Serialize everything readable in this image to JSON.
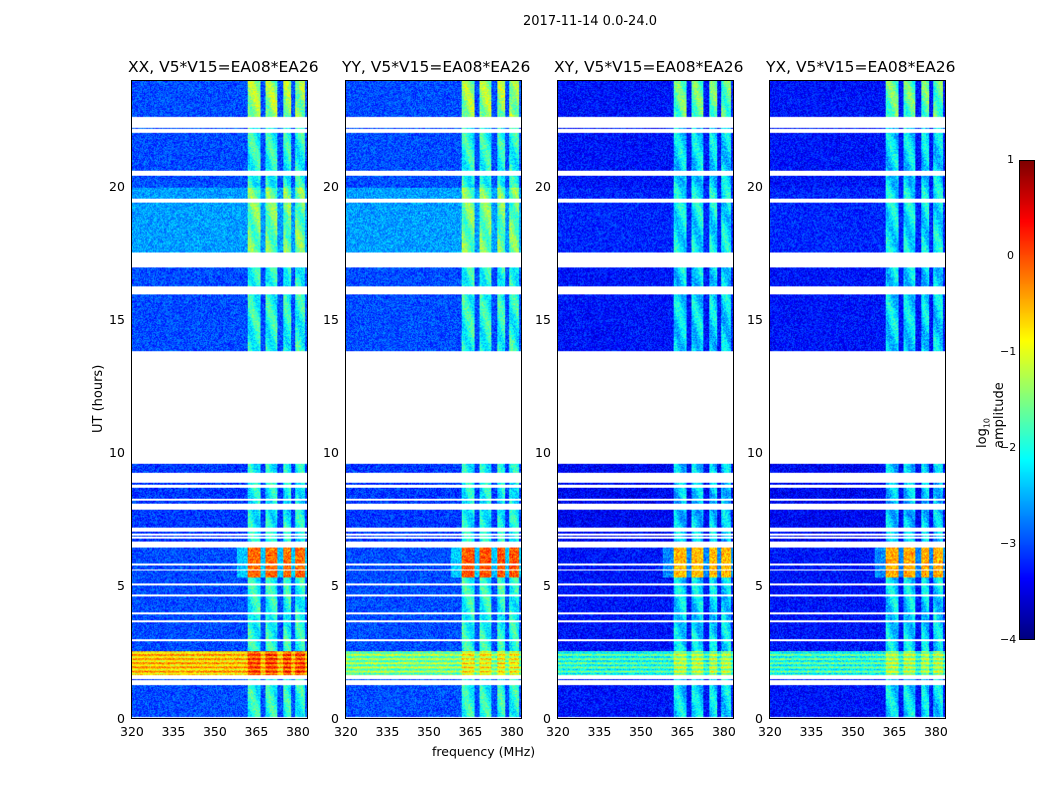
{
  "chart_data": {
    "type": "heatmap",
    "suptitle": "2017-11-14 0.0-24.0",
    "xlabel": "frequency (MHz)",
    "ylabel": "UT (hours)",
    "xlim": [
      320,
      384
    ],
    "ylim": [
      0,
      24
    ],
    "xticks": [
      "320",
      "335",
      "350",
      "365",
      "380"
    ],
    "xtick_values": [
      320,
      335,
      350,
      365,
      380
    ],
    "yticks": [
      "0",
      "5",
      "10",
      "15",
      "20"
    ],
    "ytick_values": [
      0,
      5,
      10,
      15,
      20
    ],
    "colorbar": {
      "label": "log₁₀ amplitude",
      "range": [
        -4,
        1
      ],
      "ticks": [
        "1",
        "0",
        "−1",
        "−2",
        "−3",
        "−4"
      ],
      "tick_values": [
        1,
        0,
        -1,
        -2,
        -3,
        -4
      ],
      "colormap": "jet"
    },
    "panels": [
      {
        "title": "XX, V5*V15=EA08*EA26",
        "baseline": -3.0,
        "quiet_level": -2.6,
        "rfi_level": -0.4,
        "broadband_rfi": -0.6
      },
      {
        "title": "YY, V5*V15=EA08*EA26",
        "baseline": -3.0,
        "quiet_level": -2.6,
        "rfi_level": -0.3,
        "broadband_rfi": -1.5
      },
      {
        "title": "XY, V5*V15=EA08*EA26",
        "baseline": -3.3,
        "quiet_level": -3.2,
        "rfi_level": -0.8,
        "broadband_rfi": -1.9
      },
      {
        "title": "YX, V5*V15=EA08*EA26",
        "baseline": -3.3,
        "quiet_level": -3.2,
        "rfi_level": -0.7,
        "broadband_rfi": -1.9
      }
    ],
    "flagged_ut_ranges": [
      [
        22.25,
        22.65
      ],
      [
        20.45,
        20.65
      ],
      [
        19.45,
        19.6
      ],
      [
        17.0,
        17.55
      ],
      [
        16.0,
        16.3
      ],
      [
        9.6,
        13.85
      ],
      [
        9.0,
        9.25
      ],
      [
        6.45,
        6.65
      ],
      [
        1.5,
        1.62
      ],
      [
        0,
        0.05
      ]
    ],
    "quiet_ut_range": [
      17.55,
      20.0
    ],
    "rfi_bands_mhz": [
      [
        362,
        367
      ],
      [
        368.5,
        373
      ],
      [
        375,
        378
      ],
      [
        379.5,
        383
      ]
    ],
    "strong_rfi_ut_ranges": [
      [
        5.3,
        6.45
      ]
    ],
    "broadband_rfi_ut_ranges": [
      [
        1.65,
        2.55
      ]
    ]
  }
}
